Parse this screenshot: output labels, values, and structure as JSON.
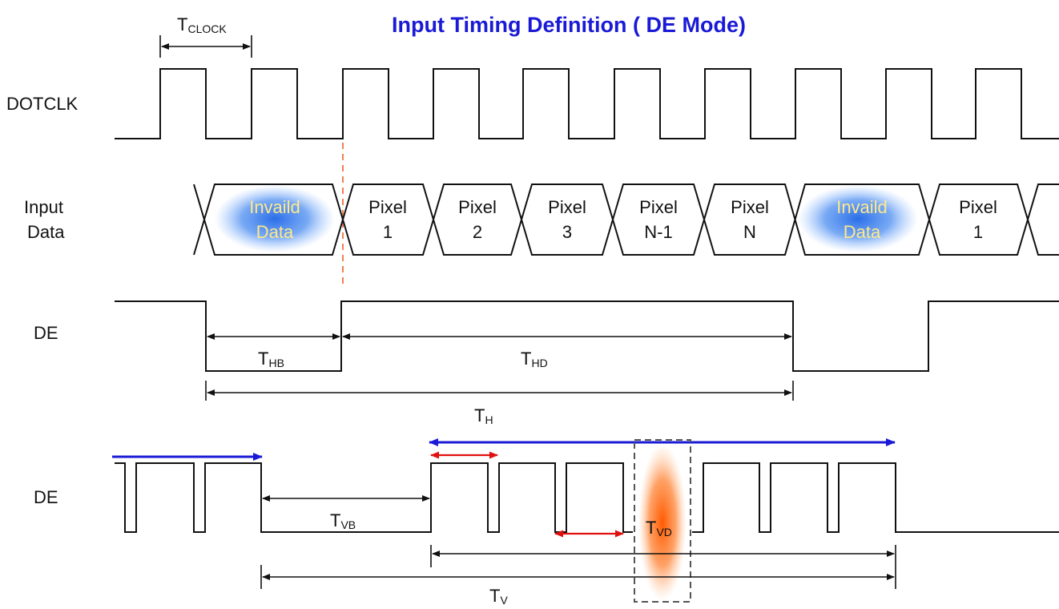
{
  "title": "Input Timing Definition ( DE Mode)",
  "signals": {
    "clock": "DOTCLK",
    "input_data": [
      "Input",
      "Data"
    ],
    "de_horizontal": "DE",
    "de_vertical": "DE"
  },
  "data_cells": [
    {
      "line1": "Invaild",
      "line2": "Data",
      "invalid": true
    },
    {
      "line1": "Pixel",
      "line2": "1",
      "invalid": false
    },
    {
      "line1": "Pixel",
      "line2": "2",
      "invalid": false
    },
    {
      "line1": "Pixel",
      "line2": "3",
      "invalid": false
    },
    {
      "line1": "Pixel",
      "line2": "N-1",
      "invalid": false
    },
    {
      "line1": "Pixel",
      "line2": "N",
      "invalid": false
    },
    {
      "line1": "Invaild",
      "line2": "Data",
      "invalid": true
    },
    {
      "line1": "Pixel",
      "line2": "1",
      "invalid": false
    }
  ],
  "timing": {
    "tclock": {
      "main": "T",
      "sub": "CLOCK"
    },
    "thb": {
      "main": "T",
      "sub": "HB"
    },
    "thd": {
      "main": "T",
      "sub": "HD"
    },
    "th": {
      "main": "T",
      "sub": "H"
    },
    "tvb": {
      "main": "T",
      "sub": "VB"
    },
    "tvd": {
      "main": "T",
      "sub": "VD"
    },
    "tv": {
      "main": "T",
      "sub": "V"
    }
  },
  "colors": {
    "title": "#1a1ad6",
    "blue_arrow": "#1a1ad6",
    "red_arrow": "#e01010",
    "invalid_glow": "#2f7de8",
    "invalid_text": "#ffe98a",
    "tvd_glow": "#ff6a10",
    "dashed_marker": "#f08050"
  }
}
